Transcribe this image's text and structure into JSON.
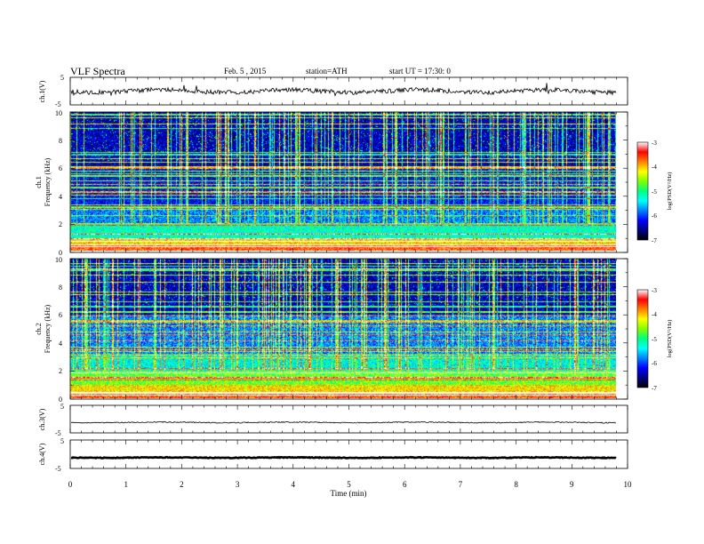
{
  "header": {
    "title": "VLF Spectra",
    "date": "Feb. 5 , 2015",
    "station": "station=ATH",
    "start": "start UT = 17:30: 0"
  },
  "colors": {
    "ink": "#000000",
    "spectrogram_scale": [
      "#000000",
      "#000080",
      "#0000ff",
      "#0080ff",
      "#00ffff",
      "#00ff80",
      "#80ff00",
      "#ffff00",
      "#ff8000",
      "#ff0000",
      "#ffffff"
    ]
  },
  "chart_data": [
    {
      "id": "ch1-waveform",
      "type": "line",
      "ylabel": "ch.1(V)",
      "ylim": [
        -5,
        5
      ],
      "yticks": [
        "5",
        "-5"
      ],
      "xlim": [
        0,
        10
      ],
      "trace_level": 0,
      "grid": false
    },
    {
      "id": "ch1-spectrogram",
      "type": "heatmap",
      "ylabel": "Frequency (kHz)",
      "channel_label": "ch.1",
      "ylim": [
        0,
        10
      ],
      "yticks": [
        "0",
        "2",
        "4",
        "6",
        "8",
        "10"
      ],
      "xlim": [
        0,
        10
      ],
      "data_end_min": 9.8,
      "colorbar": {
        "label": "log(PSD(V²/Hz)",
        "range": [
          -7,
          -3
        ],
        "ticks": [
          "-3",
          "-4",
          "-5",
          "-6",
          "-7"
        ]
      }
    },
    {
      "id": "ch2-spectrogram",
      "type": "heatmap",
      "ylabel": "Frequency (kHz)",
      "channel_label": "ch.2",
      "ylim": [
        0,
        10
      ],
      "yticks": [
        "0",
        "2",
        "4",
        "6",
        "8",
        "10"
      ],
      "xlim": [
        0,
        10
      ],
      "data_end_min": 9.8,
      "colorbar": {
        "label": "log(PSD(V²/Hz)",
        "range": [
          -7,
          -3
        ],
        "ticks": [
          "-3",
          "-4",
          "-5",
          "-6",
          "-7"
        ]
      }
    },
    {
      "id": "ch3-waveform",
      "type": "line",
      "ylabel": "ch.3(V)",
      "ylim": [
        -5,
        5
      ],
      "yticks": [
        "5",
        "-5"
      ],
      "xlim": [
        0,
        10
      ],
      "trace_level": -1.2,
      "grid": false
    },
    {
      "id": "ch4-waveform",
      "type": "line",
      "ylabel": "ch.4(V)",
      "ylim": [
        -5,
        5
      ],
      "yticks": [
        "5",
        "-5"
      ],
      "xlim": [
        0,
        10
      ],
      "trace_level": -1.2,
      "grid": false
    }
  ],
  "x_axis": {
    "label": "Time (min)",
    "ticks": [
      "0",
      "1",
      "2",
      "3",
      "4",
      "5",
      "6",
      "7",
      "8",
      "9",
      "10"
    ]
  }
}
